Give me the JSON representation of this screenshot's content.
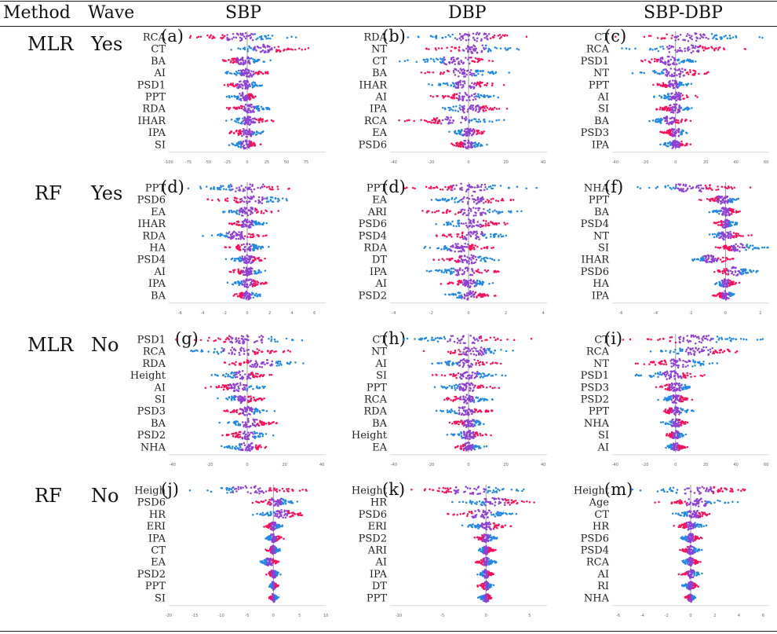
{
  "header": {
    "method": "Method",
    "wave": "Wave",
    "columns": [
      "SBP",
      "DBP",
      "SBP-DBP"
    ]
  },
  "rows": [
    {
      "method": "MLR",
      "wave": "Yes"
    },
    {
      "method": "RF",
      "wave": "Yes"
    },
    {
      "method": "MLR",
      "wave": "No"
    },
    {
      "method": "RF",
      "wave": "No"
    }
  ],
  "colors": {
    "low": "#1e88e5",
    "mid": "#8e3fd6",
    "high": "#ff0d57",
    "axis": "#9a9a9a"
  },
  "chart_data": [
    {
      "type": "scatter",
      "label": "(a)",
      "row": 0,
      "col": 0,
      "features": [
        "RCA",
        "CT",
        "BA",
        "AI",
        "PSD1",
        "PPT",
        "RDA",
        "IHAR",
        "IPA",
        "SI"
      ],
      "xticks": [
        "-100",
        "-75",
        "-50",
        "-25",
        "0",
        "25",
        "50",
        "75"
      ],
      "xlim": [
        -100,
        100
      ],
      "spread": [
        [
          -85,
          65
        ],
        [
          -35,
          80
        ],
        [
          -40,
          30
        ],
        [
          -35,
          35
        ],
        [
          -40,
          30
        ],
        [
          -28,
          20
        ],
        [
          -30,
          35
        ],
        [
          -30,
          35
        ],
        [
          -30,
          30
        ],
        [
          -25,
          20
        ]
      ]
    },
    {
      "type": "scatter",
      "label": "(b)",
      "row": 0,
      "col": 1,
      "features": [
        "RDA",
        "NT",
        "CT",
        "BA",
        "IHAR",
        "AI",
        "IPA",
        "RCA",
        "EA",
        "PSD6"
      ],
      "xticks": [
        "-40",
        "-20",
        "0",
        "20",
        "40"
      ],
      "xlim": [
        -42,
        42
      ],
      "spread": [
        [
          -35,
          40
        ],
        [
          -25,
          30
        ],
        [
          -37,
          25
        ],
        [
          -28,
          22
        ],
        [
          -25,
          22
        ],
        [
          -22,
          20
        ],
        [
          -22,
          24
        ],
        [
          -40,
          25
        ],
        [
          -12,
          12
        ],
        [
          -12,
          12
        ]
      ]
    },
    {
      "type": "scatter",
      "label": "(c)",
      "row": 0,
      "col": 2,
      "features": [
        "CT",
        "RCA",
        "PSD1",
        "NT",
        "PPT",
        "AI",
        "SI",
        "BA",
        "PSD3",
        "IPA"
      ],
      "xticks": [
        "-40",
        "-20",
        "0",
        "20",
        "40",
        "60"
      ],
      "xlim": [
        -42,
        62
      ],
      "spread": [
        [
          -40,
          60
        ],
        [
          -40,
          50
        ],
        [
          -30,
          20
        ],
        [
          -30,
          30
        ],
        [
          -15,
          12
        ],
        [
          -15,
          15
        ],
        [
          -15,
          15
        ],
        [
          -20,
          12
        ],
        [
          -12,
          12
        ],
        [
          -12,
          12
        ]
      ]
    },
    {
      "type": "scatter",
      "label": "(d)",
      "row": 1,
      "col": 0,
      "features": [
        "PPT",
        "PSD6",
        "EA",
        "IHAR",
        "RDA",
        "HA",
        "PSD4",
        "AI",
        "IPA",
        "BA"
      ],
      "xticks": [
        "-6",
        "-4",
        "-2",
        "0",
        "2",
        "4",
        "6"
      ],
      "xlim": [
        -7,
        7
      ],
      "spread": [
        [
          -6,
          6
        ],
        [
          -4,
          5
        ],
        [
          -3,
          3
        ],
        [
          -2,
          2
        ],
        [
          -4,
          2
        ],
        [
          -2,
          2
        ],
        [
          -2,
          2
        ],
        [
          -2,
          2
        ],
        [
          -2,
          2
        ],
        [
          -1.5,
          1.5
        ]
      ]
    },
    {
      "type": "scatter",
      "label": "(d)",
      "row": 1,
      "col": 1,
      "features": [
        "PPT",
        "EA",
        "ARI",
        "PSD6",
        "PSD4",
        "RDA",
        "DT",
        "IPA",
        "AI",
        "PSD2"
      ],
      "xticks": [
        "-4",
        "-2",
        "0",
        "2",
        "4"
      ],
      "xlim": [
        -4.2,
        4.2
      ],
      "spread": [
        [
          -3.8,
          3.8
        ],
        [
          -2.5,
          3
        ],
        [
          -2.5,
          3
        ],
        [
          -2.2,
          2.5
        ],
        [
          -2,
          2.5
        ],
        [
          -2.5,
          1.5
        ],
        [
          -2,
          2
        ],
        [
          -2.5,
          2
        ],
        [
          -1.5,
          1.5
        ],
        [
          -1.5,
          1.5
        ]
      ]
    },
    {
      "type": "scatter",
      "label": "(f)",
      "row": 1,
      "col": 2,
      "features": [
        "NHA",
        "PPT",
        "BA",
        "PSD4",
        "NT",
        "SI",
        "IHAR",
        "PSD6",
        "HA",
        "IPA"
      ],
      "xticks": [
        "-6",
        "-4",
        "-2",
        "0",
        "2"
      ],
      "xlim": [
        -6.5,
        2.5
      ],
      "spread": [
        [
          -5.5,
          1.5
        ],
        [
          -1.5,
          1.2
        ],
        [
          -1,
          1
        ],
        [
          -0.8,
          0.8
        ],
        [
          -1.5,
          1.5
        ],
        [
          -1,
          2.5
        ],
        [
          -2.5,
          0.8
        ],
        [
          -1,
          2
        ],
        [
          -0.8,
          0.8
        ],
        [
          -0.8,
          0.8
        ]
      ]
    },
    {
      "type": "scatter",
      "label": "(g)",
      "row": 2,
      "col": 0,
      "features": [
        "PSD1",
        "RCA",
        "RDA",
        "Height",
        "AI",
        "SI",
        "PSD3",
        "BA",
        "PSD2",
        "NHA"
      ],
      "xticks": [
        "-40",
        "-20",
        "0",
        "20",
        "40"
      ],
      "xlim": [
        -42,
        42
      ],
      "spread": [
        [
          -40,
          40
        ],
        [
          -40,
          30
        ],
        [
          -20,
          35
        ],
        [
          -20,
          15
        ],
        [
          -25,
          15
        ],
        [
          -18,
          12
        ],
        [
          -15,
          15
        ],
        [
          -15,
          18
        ],
        [
          -15,
          15
        ],
        [
          -15,
          15
        ]
      ]
    },
    {
      "type": "scatter",
      "label": "(h)",
      "row": 2,
      "col": 1,
      "features": [
        "CT",
        "NT",
        "AI",
        "SI",
        "PPT",
        "RCA",
        "RDA",
        "BA",
        "Height",
        "EA"
      ],
      "xticks": [
        "-40",
        "-20",
        "0",
        "20",
        "40"
      ],
      "xlim": [
        -42,
        42
      ],
      "spread": [
        [
          -40,
          35
        ],
        [
          -25,
          30
        ],
        [
          -22,
          20
        ],
        [
          -20,
          20
        ],
        [
          -20,
          18
        ],
        [
          -18,
          15
        ],
        [
          -18,
          15
        ],
        [
          -12,
          12
        ],
        [
          -12,
          12
        ],
        [
          -10,
          10
        ]
      ]
    },
    {
      "type": "scatter",
      "label": "(i)",
      "row": 2,
      "col": 2,
      "features": [
        "CT",
        "RCA",
        "NT",
        "PSD1",
        "PSD3",
        "PSD2",
        "PPT",
        "NHA",
        "SI",
        "AI"
      ],
      "xticks": [
        "-40",
        "-20",
        "0",
        "20",
        "40",
        "60"
      ],
      "xlim": [
        -42,
        62
      ],
      "spread": [
        [
          -35,
          60
        ],
        [
          -25,
          55
        ],
        [
          -30,
          35
        ],
        [
          -30,
          25
        ],
        [
          -15,
          15
        ],
        [
          -12,
          12
        ],
        [
          -12,
          12
        ],
        [
          -10,
          10
        ],
        [
          -8,
          8
        ],
        [
          -8,
          8
        ]
      ]
    },
    {
      "type": "scatter",
      "label": "(j)",
      "row": 3,
      "col": 0,
      "features": [
        "Heigh",
        "PSD6",
        "HR",
        "ERI",
        "IPA",
        "CT",
        "EA",
        "PSD2",
        "PPT",
        "SI"
      ],
      "xticks": [
        "-20",
        "-15",
        "-10",
        "-5",
        "0",
        "5",
        "10"
      ],
      "xlim": [
        -20,
        10
      ],
      "spread": [
        [
          -18,
          9
        ],
        [
          -4,
          5
        ],
        [
          -4,
          7
        ],
        [
          -2,
          2
        ],
        [
          -2,
          2
        ],
        [
          -1.5,
          1.5
        ],
        [
          -3,
          1.5
        ],
        [
          -1.5,
          1.5
        ],
        [
          -1,
          1
        ],
        [
          -1,
          1
        ]
      ]
    },
    {
      "type": "scatter",
      "label": "(k)",
      "row": 3,
      "col": 1,
      "features": [
        "Height",
        "HR",
        "PSD6",
        "ERI",
        "PSD2",
        "ARI",
        "AI",
        "IPA",
        "DT",
        "PPT"
      ],
      "xticks": [
        "-10",
        "-5",
        "0",
        "5"
      ],
      "xlim": [
        -11,
        7
      ],
      "spread": [
        [
          -10,
          6
        ],
        [
          -4,
          6
        ],
        [
          -5,
          4
        ],
        [
          -3,
          3
        ],
        [
          -1.5,
          1.5
        ],
        [
          -1.2,
          1.2
        ],
        [
          -1.2,
          1.2
        ],
        [
          -1,
          1
        ],
        [
          -1,
          1
        ],
        [
          -1,
          1
        ]
      ]
    },
    {
      "type": "scatter",
      "label": "(m)",
      "row": 3,
      "col": 2,
      "features": [
        "Height",
        "Age",
        "CT",
        "HR",
        "PSD6",
        "PSD4",
        "RCA",
        "AI",
        "RI",
        "NHA"
      ],
      "xticks": [
        "-6",
        "-4",
        "-2",
        "0",
        "2",
        "4",
        "6"
      ],
      "xlim": [
        -6.5,
        6.5
      ],
      "spread": [
        [
          -5,
          6
        ],
        [
          -3,
          4
        ],
        [
          -1.5,
          2
        ],
        [
          -1.5,
          1.5
        ],
        [
          -1,
          1
        ],
        [
          -1,
          1
        ],
        [
          -1,
          1
        ],
        [
          -1,
          1
        ],
        [
          -0.8,
          0.8
        ],
        [
          -0.5,
          0.5
        ]
      ]
    }
  ]
}
